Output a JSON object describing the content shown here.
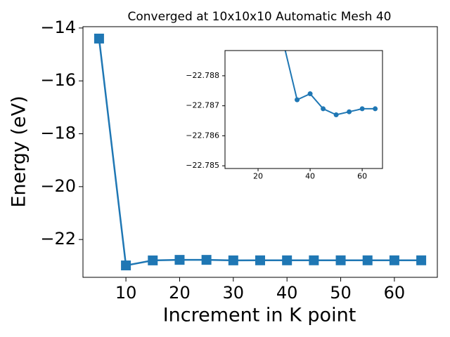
{
  "chart_data": [
    {
      "type": "line",
      "title": "Converged at 10x10x10 Automatic Mesh 40",
      "x_label": "Increment in K point",
      "y_label": "Energy (eV)",
      "x": [
        5,
        10,
        15,
        20,
        25,
        30,
        35,
        40,
        45,
        50,
        55,
        60,
        65
      ],
      "values": [
        -14.4,
        -22.98,
        -22.79,
        -22.77,
        -22.77,
        -22.789,
        -22.7872,
        -22.7874,
        -22.7869,
        -22.7867,
        -22.7868,
        -22.7869,
        -22.7869
      ],
      "color": "#1f77b4",
      "marker": "square",
      "xlim": [
        2,
        68
      ],
      "ylim": [
        -23.43,
        -13.95
      ],
      "xticks": [
        10,
        20,
        30,
        40,
        50,
        60
      ],
      "yticks": [
        {
          "value": -22,
          "label": "−22"
        },
        {
          "value": -20,
          "label": "−20"
        },
        {
          "value": -18,
          "label": "−18"
        },
        {
          "value": -16,
          "label": "−16"
        },
        {
          "value": -14,
          "label": "−14"
        }
      ]
    },
    {
      "type": "line",
      "x": [
        30,
        35,
        40,
        45,
        50,
        55,
        60,
        65
      ],
      "values": [
        -22.789,
        -22.7872,
        -22.7874,
        -22.7869,
        -22.7867,
        -22.7868,
        -22.7869,
        -22.7869
      ],
      "color": "#1f77b4",
      "marker": "circle",
      "xlim": [
        7.3,
        67.8
      ],
      "ylim": [
        -22.78884,
        -22.78491
      ],
      "y_inverted": true,
      "xticks": [
        20,
        40,
        60
      ],
      "yticks": [
        {
          "value": -22.788,
          "label": "−22.788"
        },
        {
          "value": -22.787,
          "label": "−22.787"
        },
        {
          "value": -22.786,
          "label": "−22.786"
        },
        {
          "value": -22.785,
          "label": "−22.785"
        }
      ]
    }
  ]
}
